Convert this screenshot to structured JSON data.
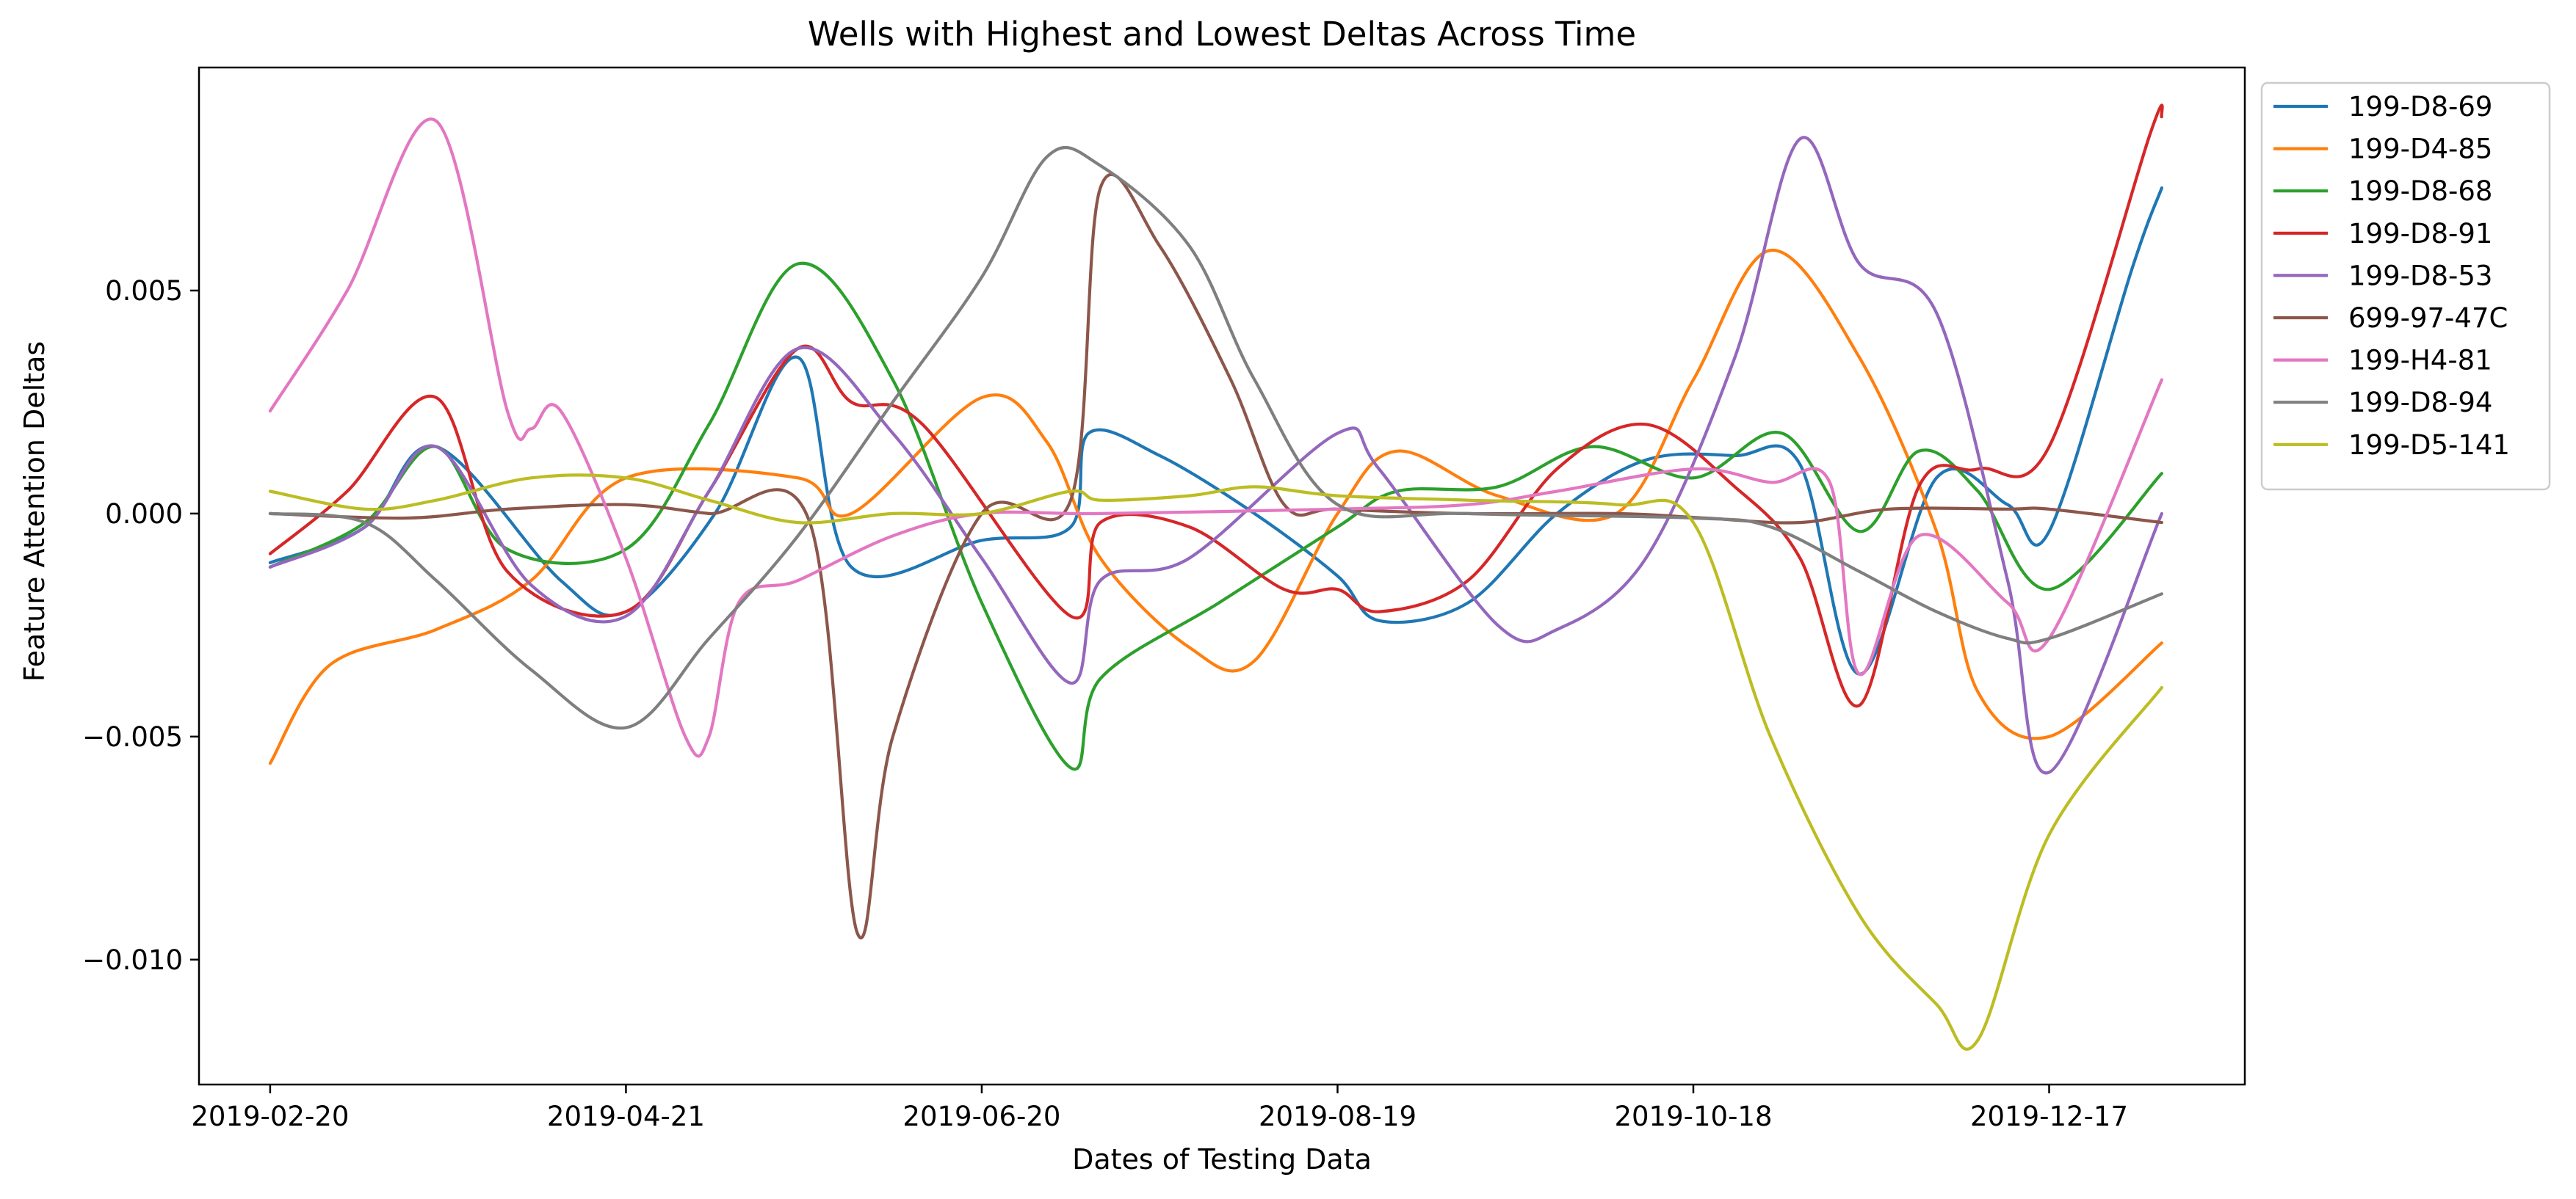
{
  "chart_data": {
    "type": "line",
    "title": "Wells with Highest and Lowest Deltas Across Time",
    "xlabel": "Dates of Testing Data",
    "ylabel": "Feature Attention Deltas",
    "x_type": "date",
    "xlim": [
      "2019-02-08",
      "2020-01-19"
    ],
    "ylim": [
      -0.0128,
      0.01
    ],
    "x_ticks": [
      "2019-02-20",
      "2019-04-21",
      "2019-06-20",
      "2019-08-19",
      "2019-10-18",
      "2019-12-17"
    ],
    "y_ticks": [
      -0.01,
      -0.005,
      0.0,
      0.005
    ],
    "y_tick_labels": [
      "−0.010",
      "−0.005",
      "0.000",
      "0.005"
    ],
    "grid": false,
    "legend_position": "outside-right-top",
    "series": [
      {
        "name": "199-D8-69",
        "color": "#1f77b4",
        "x": [
          "2019-02-20",
          "2019-03-08",
          "2019-03-20",
          "2019-04-10",
          "2019-04-21",
          "2019-05-06",
          "2019-05-20",
          "2019-05-29",
          "2019-06-20",
          "2019-07-05",
          "2019-07-08",
          "2019-07-20",
          "2019-08-05",
          "2019-08-19",
          "2019-08-26",
          "2019-09-10",
          "2019-09-25",
          "2019-10-10",
          "2019-10-25",
          "2019-11-05",
          "2019-11-15",
          "2019-11-28",
          "2019-12-10",
          "2019-12-17",
          "2019-12-31",
          "2020-01-05"
        ],
        "y": [
          -0.0011,
          -0.0003,
          0.0015,
          -0.0015,
          -0.0022,
          0.0,
          0.0035,
          -0.0012,
          -0.0006,
          -0.0003,
          0.0018,
          0.0013,
          0.0,
          -0.0014,
          -0.0024,
          -0.002,
          0.0,
          0.0012,
          0.0013,
          0.0011,
          -0.0036,
          0.0008,
          0.0002,
          -0.0004,
          0.0055,
          0.0073
        ]
      },
      {
        "name": "199-D4-85",
        "color": "#ff7f0e",
        "x": [
          "2019-02-20",
          "2019-03-02",
          "2019-03-20",
          "2019-04-05",
          "2019-04-21",
          "2019-05-20",
          "2019-05-29",
          "2019-06-20",
          "2019-07-01",
          "2019-07-10",
          "2019-07-25",
          "2019-08-05",
          "2019-08-19",
          "2019-08-29",
          "2019-09-15",
          "2019-10-05",
          "2019-10-18",
          "2019-10-31",
          "2019-11-15",
          "2019-11-28",
          "2019-12-05",
          "2019-12-17",
          "2020-01-05"
        ],
        "y": [
          -0.0056,
          -0.0034,
          -0.0026,
          -0.0015,
          0.0008,
          0.0008,
          0.0,
          0.0026,
          0.0016,
          -0.001,
          -0.003,
          -0.0033,
          0.0,
          0.0014,
          0.0004,
          0.0,
          0.003,
          0.0059,
          0.0035,
          -0.0004,
          -0.004,
          -0.005,
          -0.0029
        ]
      },
      {
        "name": "199-D8-68",
        "color": "#2ca02c",
        "x": [
          "2019-02-20",
          "2019-03-08",
          "2019-03-20",
          "2019-04-01",
          "2019-04-21",
          "2019-05-05",
          "2019-05-20",
          "2019-06-05",
          "2019-06-20",
          "2019-07-05",
          "2019-07-10",
          "2019-07-30",
          "2019-08-19",
          "2019-08-29",
          "2019-09-15",
          "2019-10-01",
          "2019-10-18",
          "2019-11-02",
          "2019-11-15",
          "2019-11-25",
          "2019-12-05",
          "2019-12-17",
          "2020-01-05"
        ],
        "y": [
          -0.0012,
          -0.0002,
          0.0015,
          -0.0008,
          -0.0008,
          0.002,
          0.0056,
          0.003,
          -0.002,
          -0.0057,
          -0.0037,
          -0.002,
          -0.0003,
          0.0005,
          0.0006,
          0.0015,
          0.0008,
          0.0018,
          -0.0004,
          0.0014,
          0.0005,
          -0.0017,
          0.0009
        ]
      },
      {
        "name": "199-D8-91",
        "color": "#d62728",
        "x": [
          "2019-02-20",
          "2019-03-05",
          "2019-03-20",
          "2019-04-01",
          "2019-04-21",
          "2019-05-05",
          "2019-05-20",
          "2019-05-29",
          "2019-06-10",
          "2019-07-05",
          "2019-07-10",
          "2019-07-25",
          "2019-08-10",
          "2019-08-19",
          "2019-08-26",
          "2019-09-10",
          "2019-09-25",
          "2019-10-10",
          "2019-10-25",
          "2019-11-05",
          "2019-11-15",
          "2019-11-25",
          "2019-12-05",
          "2019-12-17",
          "2020-01-03",
          "2020-01-05"
        ],
        "y": [
          -0.0009,
          0.0005,
          0.0026,
          -0.0013,
          -0.0022,
          0.0005,
          0.0037,
          0.0025,
          0.002,
          -0.0023,
          -0.0002,
          -0.0003,
          -0.0017,
          -0.0017,
          -0.0022,
          -0.0015,
          0.001,
          0.002,
          0.0006,
          -0.001,
          -0.0043,
          0.0006,
          0.001,
          0.0015,
          0.0085,
          0.0089
        ]
      },
      {
        "name": "199-D8-53",
        "color": "#9467bd",
        "x": [
          "2019-02-20",
          "2019-03-08",
          "2019-03-20",
          "2019-04-05",
          "2019-04-21",
          "2019-05-05",
          "2019-05-20",
          "2019-06-05",
          "2019-06-20",
          "2019-07-05",
          "2019-07-10",
          "2019-07-25",
          "2019-08-19",
          "2019-08-26",
          "2019-09-15",
          "2019-09-25",
          "2019-10-10",
          "2019-10-25",
          "2019-11-05",
          "2019-11-15",
          "2019-11-28",
          "2019-12-10",
          "2019-12-17",
          "2020-01-05"
        ],
        "y": [
          -0.0012,
          -0.0003,
          0.0015,
          -0.0016,
          -0.0023,
          0.0005,
          0.0037,
          0.0018,
          -0.001,
          -0.0038,
          -0.0015,
          -0.001,
          0.0018,
          0.001,
          -0.0025,
          -0.0026,
          -0.001,
          0.0035,
          0.0084,
          0.0056,
          0.0045,
          -0.0015,
          -0.0058,
          0.0
        ]
      },
      {
        "name": "699-97-47C",
        "color": "#8c564b",
        "x": [
          "2019-02-20",
          "2019-03-15",
          "2019-04-01",
          "2019-04-21",
          "2019-05-05",
          "2019-05-22",
          "2019-05-30",
          "2019-06-05",
          "2019-06-20",
          "2019-07-05",
          "2019-07-10",
          "2019-07-20",
          "2019-08-01",
          "2019-08-10",
          "2019-08-19",
          "2019-09-10",
          "2019-10-05",
          "2019-10-20",
          "2019-11-05",
          "2019-11-20",
          "2019-12-10",
          "2019-12-17",
          "2020-01-05"
        ],
        "y": [
          0.0,
          -0.0001,
          0.0001,
          0.0002,
          0.0,
          -0.0002,
          -0.0094,
          -0.005,
          0.0,
          0.0003,
          0.0073,
          0.006,
          0.003,
          0.0002,
          0.0001,
          0.0,
          0.0,
          -0.0001,
          -0.0002,
          0.0001,
          0.0001,
          0.0001,
          -0.0002
        ]
      },
      {
        "name": "199-H4-81",
        "color": "#e377c2",
        "x": [
          "2019-02-20",
          "2019-03-05",
          "2019-03-20",
          "2019-04-01",
          "2019-04-05",
          "2019-04-10",
          "2019-04-21",
          "2019-05-01",
          "2019-05-05",
          "2019-05-10",
          "2019-05-20",
          "2019-06-05",
          "2019-06-20",
          "2019-07-10",
          "2019-08-19",
          "2019-09-10",
          "2019-09-25",
          "2019-10-18",
          "2019-10-31",
          "2019-11-10",
          "2019-11-15",
          "2019-11-25",
          "2019-12-10",
          "2019-12-17",
          "2020-01-05"
        ],
        "y": [
          0.0023,
          0.005,
          0.0088,
          0.0023,
          0.0019,
          0.0023,
          -0.001,
          -0.005,
          -0.005,
          -0.002,
          -0.0015,
          -0.0005,
          0.0,
          0.0,
          0.0001,
          0.0002,
          0.0005,
          0.001,
          0.0007,
          0.0007,
          -0.0036,
          -0.0005,
          -0.002,
          -0.0028,
          0.003
        ]
      },
      {
        "name": "199-D8-94",
        "color": "#7f7f7f",
        "x": [
          "2019-02-20",
          "2019-03-08",
          "2019-03-20",
          "2019-04-05",
          "2019-04-21",
          "2019-05-05",
          "2019-05-20",
          "2019-06-05",
          "2019-06-20",
          "2019-07-01",
          "2019-07-10",
          "2019-07-25",
          "2019-08-05",
          "2019-08-19",
          "2019-09-10",
          "2019-10-18",
          "2019-10-31",
          "2019-11-15",
          "2019-11-28",
          "2019-12-10",
          "2019-12-17",
          "2020-01-05"
        ],
        "y": [
          0.0,
          -0.0002,
          -0.0015,
          -0.0035,
          -0.0048,
          -0.0028,
          -0.0005,
          0.0025,
          0.0053,
          0.008,
          0.0078,
          0.006,
          0.003,
          0.0002,
          0.0,
          -0.0001,
          -0.0003,
          -0.0013,
          -0.0022,
          -0.0028,
          -0.0028,
          -0.0018
        ]
      },
      {
        "name": "199-D5-141",
        "color": "#bcbd22",
        "x": [
          "2019-02-20",
          "2019-03-08",
          "2019-03-20",
          "2019-04-05",
          "2019-04-21",
          "2019-05-05",
          "2019-05-20",
          "2019-06-05",
          "2019-06-20",
          "2019-07-05",
          "2019-07-10",
          "2019-07-25",
          "2019-08-05",
          "2019-08-19",
          "2019-09-10",
          "2019-10-05",
          "2019-10-18",
          "2019-10-31",
          "2019-11-15",
          "2019-11-28",
          "2019-12-05",
          "2019-12-17",
          "2020-01-05"
        ],
        "y": [
          0.0005,
          0.0001,
          0.0003,
          0.0008,
          0.0008,
          0.0003,
          -0.0002,
          0.0,
          0.0,
          0.0005,
          0.0003,
          0.0004,
          0.0006,
          0.0004,
          0.0003,
          0.0002,
          -0.0002,
          -0.005,
          -0.009,
          -0.011,
          -0.0118,
          -0.0072,
          -0.0039
        ]
      }
    ]
  }
}
